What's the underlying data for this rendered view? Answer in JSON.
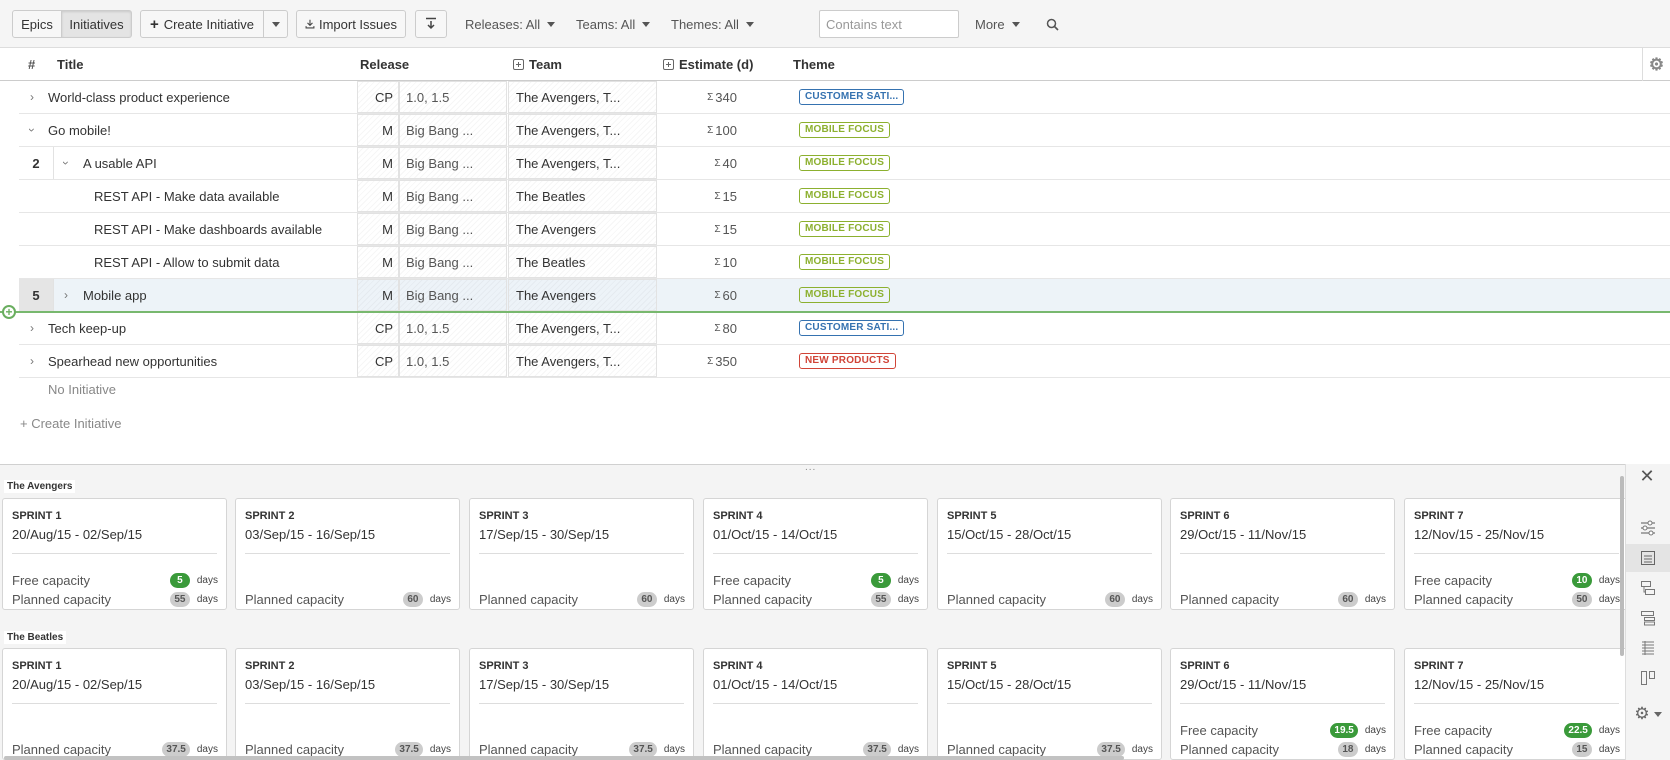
{
  "toolbar": {
    "epics": "Epics",
    "initiatives": "Initiatives",
    "create": "Create Initiative",
    "import": "Import Issues",
    "releases": "Releases: All",
    "teams": "Teams: All",
    "themes": "Themes: All",
    "search_placeholder": "Contains text",
    "more": "More"
  },
  "columns": {
    "num": "#",
    "title": "Title",
    "release": "Release",
    "team": "Team",
    "estimate": "Estimate (d)",
    "theme": "Theme"
  },
  "rows": [
    {
      "num": "",
      "toggle": "›",
      "title": "World-class product experience",
      "rel": "CP",
      "rel_val": "1.0, 1.5",
      "team": "The Avengers, T...",
      "sigma": "Σ",
      "est": "340",
      "theme": "CUSTOMER SATI...",
      "theme_color": "#3572b0"
    },
    {
      "num": "",
      "toggle": "›",
      "title": "Go mobile!",
      "rel": "M",
      "rel_val": "Big Bang ...",
      "team": "The Avengers, T...",
      "sigma": "Σ",
      "est": "100",
      "theme": "MOBILE FOCUS",
      "theme_color": "#8cb02f"
    },
    {
      "num": "2",
      "toggle": "›",
      "title": "A usable API",
      "rel": "M",
      "rel_val": "Big Bang ...",
      "team": "The Avengers, T...",
      "sigma": "Σ",
      "est": "40",
      "theme": "MOBILE FOCUS",
      "theme_color": "#8cb02f"
    },
    {
      "num": "",
      "toggle": "",
      "title": "REST API - Make data available",
      "rel": "M",
      "rel_val": "Big Bang ...",
      "team": "The Beatles",
      "sigma": "Σ",
      "est": "15",
      "theme": "MOBILE FOCUS",
      "theme_color": "#8cb02f"
    },
    {
      "num": "",
      "toggle": "",
      "title": "REST API - Make dashboards available",
      "rel": "M",
      "rel_val": "Big Bang ...",
      "team": "The Avengers",
      "sigma": "Σ",
      "est": "15",
      "theme": "MOBILE FOCUS",
      "theme_color": "#8cb02f"
    },
    {
      "num": "",
      "toggle": "",
      "title": "REST API - Allow to submit data",
      "rel": "M",
      "rel_val": "Big Bang ...",
      "team": "The Beatles",
      "sigma": "Σ",
      "est": "10",
      "theme": "MOBILE FOCUS",
      "theme_color": "#8cb02f"
    },
    {
      "num": "5",
      "toggle": "›",
      "title": "Mobile app",
      "rel": "M",
      "rel_val": "Big Bang ...",
      "team": "The Avengers",
      "sigma": "Σ",
      "est": "60",
      "theme": "MOBILE FOCUS",
      "theme_color": "#8cb02f"
    },
    {
      "num": "",
      "toggle": "›",
      "title": "Tech keep-up",
      "rel": "CP",
      "rel_val": "1.0, 1.5",
      "team": "The Avengers, T...",
      "sigma": "Σ",
      "est": "80",
      "theme": "CUSTOMER SATI...",
      "theme_color": "#3572b0"
    },
    {
      "num": "",
      "toggle": "›",
      "title": "Spearhead new opportunities",
      "rel": "CP",
      "rel_val": "1.0, 1.5",
      "team": "The Avengers, T...",
      "sigma": "Σ",
      "est": "350",
      "theme": "NEW PRODUCTS",
      "theme_color": "#d04437"
    }
  ],
  "no_initiative": "No Initiative",
  "create_initiative_link": "+ Create Initiative",
  "grip": "...",
  "teams": [
    {
      "name": "The Avengers",
      "sprints": [
        {
          "name": "SPRINT 1",
          "dates": "20/Aug/15 - 02/Sep/15",
          "free_label": "Free capacity",
          "free": "5",
          "planned_label": "Planned capacity",
          "planned": "55",
          "unit": "days"
        },
        {
          "name": "SPRINT 2",
          "dates": "03/Sep/15 - 16/Sep/15",
          "free_label": "",
          "free": "",
          "planned_label": "Planned capacity",
          "planned": "60",
          "unit": "days"
        },
        {
          "name": "SPRINT 3",
          "dates": "17/Sep/15 - 30/Sep/15",
          "free_label": "",
          "free": "",
          "planned_label": "Planned capacity",
          "planned": "60",
          "unit": "days"
        },
        {
          "name": "SPRINT 4",
          "dates": "01/Oct/15 - 14/Oct/15",
          "free_label": "Free capacity",
          "free": "5",
          "planned_label": "Planned capacity",
          "planned": "55",
          "unit": "days"
        },
        {
          "name": "SPRINT 5",
          "dates": "15/Oct/15 - 28/Oct/15",
          "free_label": "",
          "free": "",
          "planned_label": "Planned capacity",
          "planned": "60",
          "unit": "days"
        },
        {
          "name": "SPRINT 6",
          "dates": "29/Oct/15 - 11/Nov/15",
          "free_label": "",
          "free": "",
          "planned_label": "Planned capacity",
          "planned": "60",
          "unit": "days"
        },
        {
          "name": "SPRINT 7",
          "dates": "12/Nov/15 - 25/Nov/15",
          "free_label": "Free capacity",
          "free": "10",
          "planned_label": "Planned capacity",
          "planned": "50",
          "unit": "days"
        }
      ]
    },
    {
      "name": "The Beatles",
      "sprints": [
        {
          "name": "SPRINT 1",
          "dates": "20/Aug/15 - 02/Sep/15",
          "free_label": "",
          "free": "",
          "planned_label": "Planned capacity",
          "planned": "37.5",
          "unit": "days"
        },
        {
          "name": "SPRINT 2",
          "dates": "03/Sep/15 - 16/Sep/15",
          "free_label": "",
          "free": "",
          "planned_label": "Planned capacity",
          "planned": "37.5",
          "unit": "days"
        },
        {
          "name": "SPRINT 3",
          "dates": "17/Sep/15 - 30/Sep/15",
          "free_label": "",
          "free": "",
          "planned_label": "Planned capacity",
          "planned": "37.5",
          "unit": "days"
        },
        {
          "name": "SPRINT 4",
          "dates": "01/Oct/15 - 14/Oct/15",
          "free_label": "",
          "free": "",
          "planned_label": "Planned capacity",
          "planned": "37.5",
          "unit": "days"
        },
        {
          "name": "SPRINT 5",
          "dates": "15/Oct/15 - 28/Oct/15",
          "free_label": "",
          "free": "",
          "planned_label": "Planned capacity",
          "planned": "37.5",
          "unit": "days"
        },
        {
          "name": "SPRINT 6",
          "dates": "29/Oct/15 - 11/Nov/15",
          "free_label": "Free capacity",
          "free": "19.5",
          "planned_label": "Planned capacity",
          "planned": "18",
          "unit": "days"
        },
        {
          "name": "SPRINT 7",
          "dates": "12/Nov/15 - 25/Nov/15",
          "free_label": "Free capacity",
          "free": "22.5",
          "planned_label": "Planned capacity",
          "planned": "15",
          "unit": "days"
        }
      ]
    }
  ],
  "colors": {
    "accent_green": "#3a9a3a",
    "drop_line": "#78b86e",
    "mobile": "#8cb02f",
    "customer": "#3572b0",
    "new_products": "#d04437"
  },
  "icons": {
    "download": "download-icon",
    "import": "import-icon",
    "search": "search-icon",
    "gear": "gear-icon",
    "close": "close-icon",
    "sliders": "sliders-icon",
    "details": "details-icon",
    "hierarchy": "hierarchy-icon",
    "tree": "tree-icon",
    "list": "list-icon",
    "columns": "columns-icon"
  }
}
